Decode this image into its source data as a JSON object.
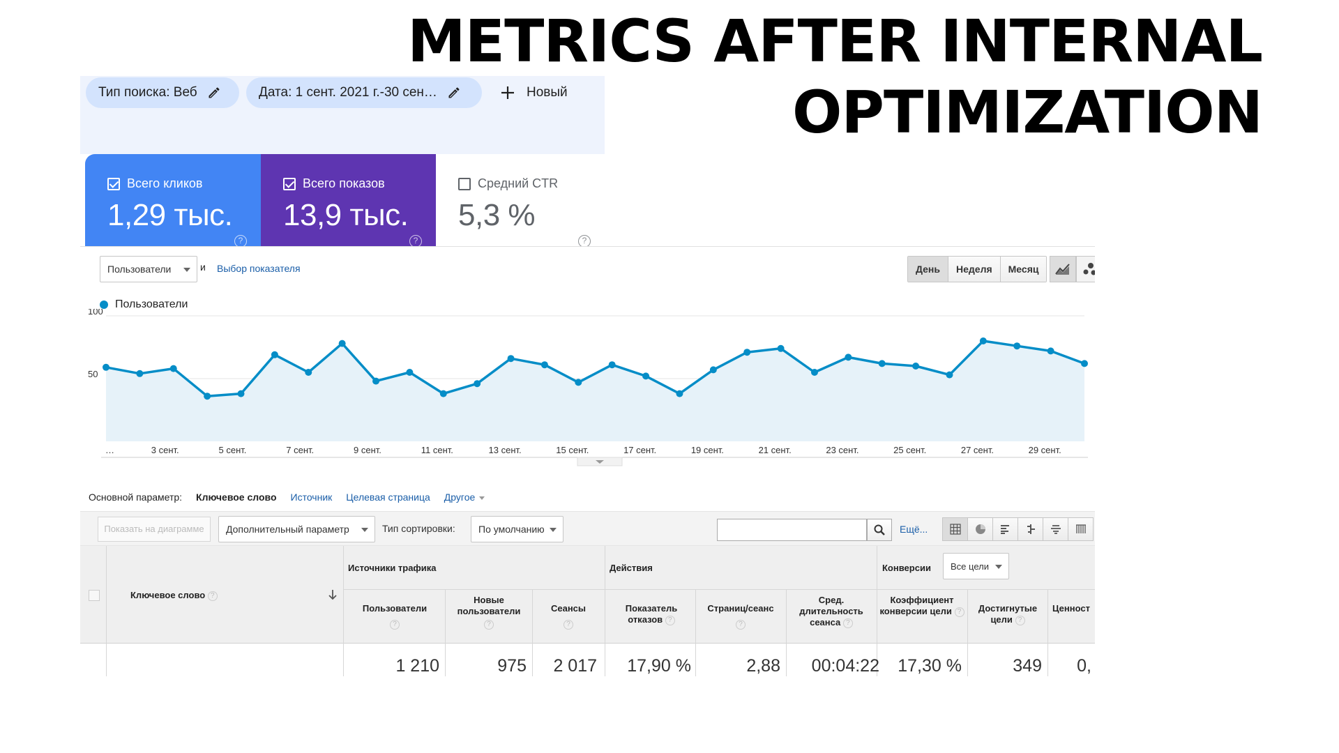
{
  "slide": {
    "title": "METRICS AFTER INTERNAL OPTIMIZATION"
  },
  "search_console": {
    "filters": {
      "search_type": "Тип поиска: Веб",
      "date": "Дата: 1 сент. 2021 г.-30 сен…",
      "new_label": "Новый"
    },
    "cards": [
      {
        "label": "Всего кликов",
        "value": "1,29 тыс.",
        "checked": true,
        "color": "#4285f4"
      },
      {
        "label": "Всего показов",
        "value": "13,9 тыс.",
        "checked": true,
        "color": "#5e35b1"
      },
      {
        "label": "Средний CTR",
        "value": "5,3 %",
        "checked": false
      }
    ]
  },
  "analytics": {
    "metric_select": "Пользователи",
    "and_label": "и",
    "choose_metric": "Выбор показателя",
    "periods": [
      "День",
      "Неделя",
      "Месяц"
    ],
    "legend": "Пользователи",
    "primary_dimension": {
      "label": "Основной параметр:",
      "active": "Ключевое слово",
      "links": [
        "Источник",
        "Целевая страница",
        "Другое"
      ]
    },
    "toolbar": {
      "plot_rows": "Показать на диаграмме",
      "secondary_dimension": "Дополнительный параметр",
      "sort_label": "Тип сортировки:",
      "sort_value": "По умолчанию",
      "search_placeholder": "",
      "more": "Ещё..."
    },
    "table": {
      "keyword_header": "Ключевое слово",
      "groups": [
        "Источники трафика",
        "Действия",
        "Конверсии"
      ],
      "goal_select": "Все цели",
      "columns": [
        "Пользователи",
        "Новые пользователи",
        "Сеансы",
        "Показатель отказов",
        "Страниц/сеанс",
        "Сред. длительность сеанса",
        "Коэффициент конверсии цели",
        "Достигнутые цели",
        "Ценност"
      ],
      "totals": [
        "1 210",
        "975",
        "2 017",
        "17,90 %",
        "2,88",
        "00:04:22",
        "17,30 %",
        "349",
        "0,"
      ]
    }
  },
  "chart_data": {
    "type": "area",
    "title": "",
    "xlabel": "",
    "ylabel": "",
    "ylim": [
      0,
      100
    ],
    "yticks": [
      50,
      100
    ],
    "x_tick_labels": [
      "…",
      "3 сент.",
      "5 сент.",
      "7 сент.",
      "9 сент.",
      "11 сент.",
      "13 сент.",
      "15 сент.",
      "17 сент.",
      "19 сент.",
      "21 сент.",
      "23 сент.",
      "25 сент.",
      "27 сент.",
      "29 сент."
    ],
    "legend": "top-left",
    "color": "#058dc7",
    "series": [
      {
        "name": "Пользователи",
        "values": [
          59,
          54,
          58,
          36,
          38,
          69,
          55,
          78,
          48,
          55,
          38,
          46,
          66,
          61,
          47,
          61,
          52,
          38,
          57,
          71,
          74,
          55,
          67,
          62,
          60,
          53,
          80,
          76,
          72,
          62
        ]
      }
    ]
  }
}
